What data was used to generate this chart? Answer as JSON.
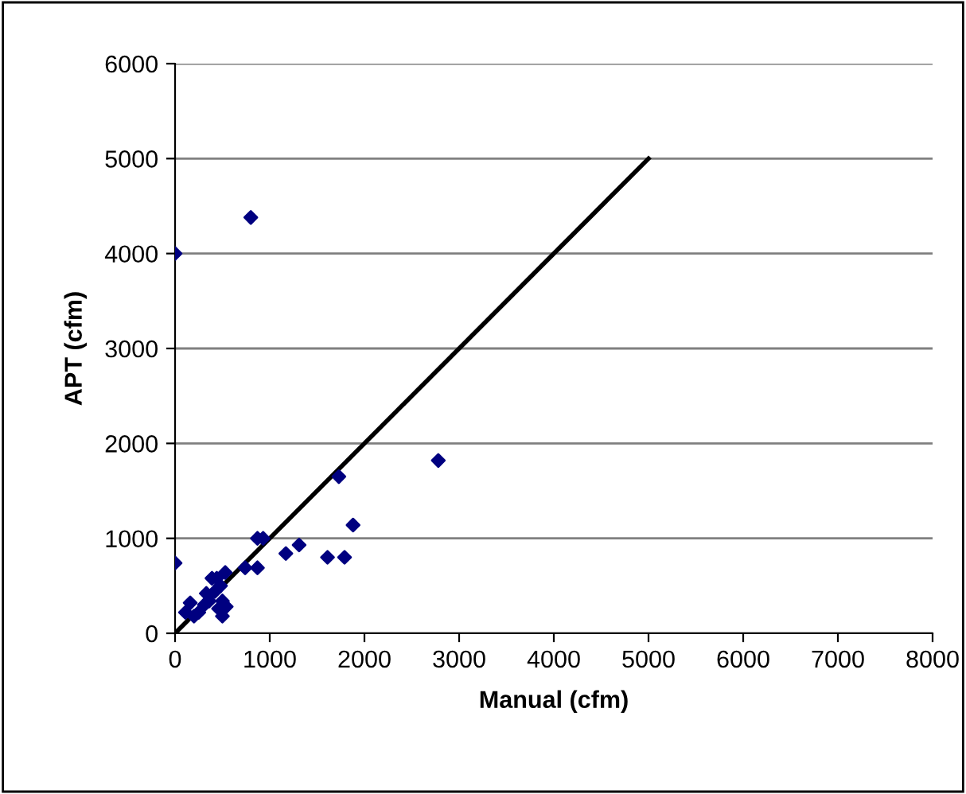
{
  "chart_data": {
    "type": "scatter",
    "xlabel": "Manual (cfm)",
    "ylabel": "APT (cfm)",
    "grid": "y",
    "legend": false,
    "xlim": [
      0,
      8000
    ],
    "ylim": [
      0,
      6000
    ],
    "xticks": [
      0,
      1000,
      2000,
      3000,
      4000,
      5000,
      6000,
      7000,
      8000
    ],
    "yticks": [
      0,
      1000,
      2000,
      3000,
      4000,
      5000,
      6000
    ],
    "series": [
      {
        "marker": "diamond",
        "color": "#000080",
        "x": [
          0,
          870,
          930,
          740,
          870,
          1170,
          1310,
          1610,
          1790,
          1880,
          1730,
          160,
          110,
          200,
          250,
          330,
          390,
          440,
          530,
          420,
          480,
          360,
          500,
          540,
          500,
          460,
          310,
          2780,
          0,
          800
        ],
        "values": [
          740,
          1000,
          1000,
          690,
          690,
          840,
          930,
          800,
          800,
          1140,
          1650,
          320,
          220,
          180,
          220,
          420,
          580,
          580,
          640,
          440,
          500,
          340,
          340,
          280,
          180,
          260,
          300,
          1820,
          4000,
          4380
        ]
      },
      {
        "type": "line",
        "marker": "none",
        "color": "#000000",
        "x": [
          0,
          5000
        ],
        "values": [
          0,
          5000
        ]
      }
    ]
  }
}
